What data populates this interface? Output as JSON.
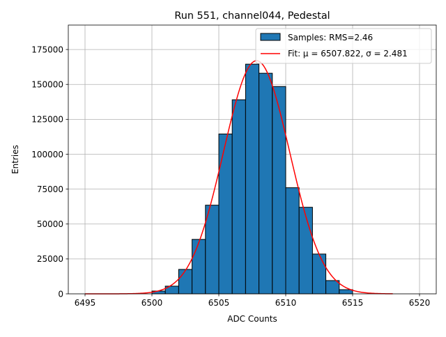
{
  "chart_data": {
    "type": "bar",
    "title": "Run 551, channel044, Pedestal",
    "xlabel": "ADC Counts",
    "ylabel": "Entries",
    "xlim": [
      6493.75,
      6521.25
    ],
    "ylim": [
      0,
      192500
    ],
    "xticks": [
      6495,
      6500,
      6505,
      6510,
      6515,
      6520
    ],
    "yticks": [
      0,
      25000,
      50000,
      75000,
      100000,
      125000,
      150000,
      175000
    ],
    "grid": true,
    "legend_position": "top-right",
    "colors": {
      "bars": "#1f77b4",
      "bar_edge": "#000000",
      "fit": "#ff0000",
      "grid": "#b0b0b0"
    },
    "histogram": {
      "name": "Samples: RMS=2.46",
      "bin_width": 1,
      "bin_starts": [
        6500,
        6501,
        6502,
        6503,
        6504,
        6505,
        6506,
        6507,
        6508,
        6509,
        6510,
        6511,
        6512,
        6513,
        6514
      ],
      "counts": [
        2000,
        5500,
        17500,
        39000,
        63500,
        114500,
        139000,
        164500,
        158000,
        148500,
        76000,
        62000,
        28500,
        9500,
        3000
      ]
    },
    "fit": {
      "name": "Fit: μ = 6507.822, σ = 2.481",
      "mu": 6507.822,
      "sigma": 2.481,
      "amplitude": 167000,
      "x_range": [
        6495,
        6518
      ]
    }
  }
}
